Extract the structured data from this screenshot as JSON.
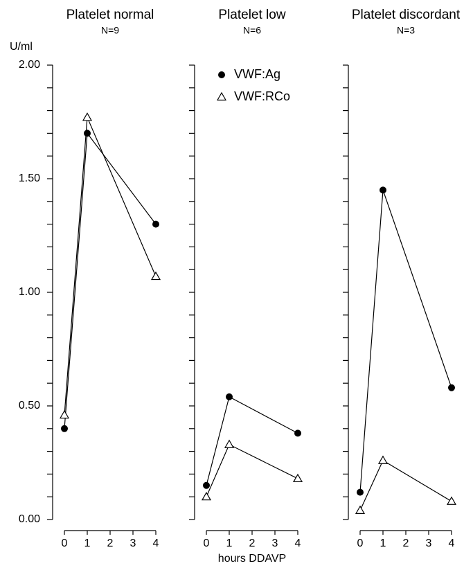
{
  "chart_data": [
    {
      "type": "line",
      "title": "Platelet normal",
      "subtitle": "N=9",
      "y_label": "U/ml",
      "x": [
        0,
        1,
        4
      ],
      "xlim": [
        0,
        4
      ],
      "xticks": [
        0,
        1,
        2,
        3,
        4
      ],
      "ylim": [
        0,
        2
      ],
      "yticks": [
        {
          "value": 0,
          "label": "0.00"
        },
        {
          "value": 0.5,
          "label": "0.50"
        },
        {
          "value": 1,
          "label": "1.00"
        },
        {
          "value": 1.5,
          "label": "1.50"
        },
        {
          "value": 2,
          "label": "2.00"
        }
      ],
      "yminorticks": [
        0.1,
        0.2,
        0.3,
        0.4,
        0.6,
        0.7,
        0.8,
        0.9,
        1.1,
        1.2,
        1.3,
        1.4,
        1.6,
        1.7,
        1.8,
        1.9
      ],
      "legend": false,
      "series": [
        {
          "name": "VWF:Ag",
          "color": "#000000",
          "marker": "circle",
          "values": [
            0.4,
            1.7,
            1.3
          ]
        },
        {
          "name": "VWF:RCo",
          "color": "#000000",
          "marker": "triangle",
          "values": [
            0.46,
            1.77,
            1.07
          ]
        }
      ]
    },
    {
      "type": "line",
      "title": "Platelet low",
      "subtitle": "N=6",
      "x_label": "hours DDAVP",
      "x": [
        0,
        1,
        4
      ],
      "xlim": [
        0,
        4
      ],
      "xticks": [
        0,
        1,
        2,
        3,
        4
      ],
      "ylim": [
        0,
        2
      ],
      "legend": true,
      "series": [
        {
          "name": "VWF:Ag",
          "color": "#000000",
          "marker": "circle",
          "values": [
            0.15,
            0.54,
            0.38
          ]
        },
        {
          "name": "VWF:RCo",
          "color": "#000000",
          "marker": "triangle",
          "values": [
            0.1,
            0.33,
            0.18
          ]
        }
      ]
    },
    {
      "type": "line",
      "title": "Platelet discordant",
      "subtitle": "N=3",
      "x": [
        0,
        1,
        4
      ],
      "xlim": [
        0,
        4
      ],
      "xticks": [
        0,
        1,
        2,
        3,
        4
      ],
      "ylim": [
        0,
        2
      ],
      "legend": false,
      "series": [
        {
          "name": "VWF:Ag",
          "color": "#000000",
          "marker": "circle",
          "values": [
            0.12,
            1.45,
            0.58
          ]
        },
        {
          "name": "VWF:RCo",
          "color": "#000000",
          "marker": "triangle",
          "values": [
            0.04,
            0.26,
            0.08
          ]
        }
      ]
    }
  ]
}
